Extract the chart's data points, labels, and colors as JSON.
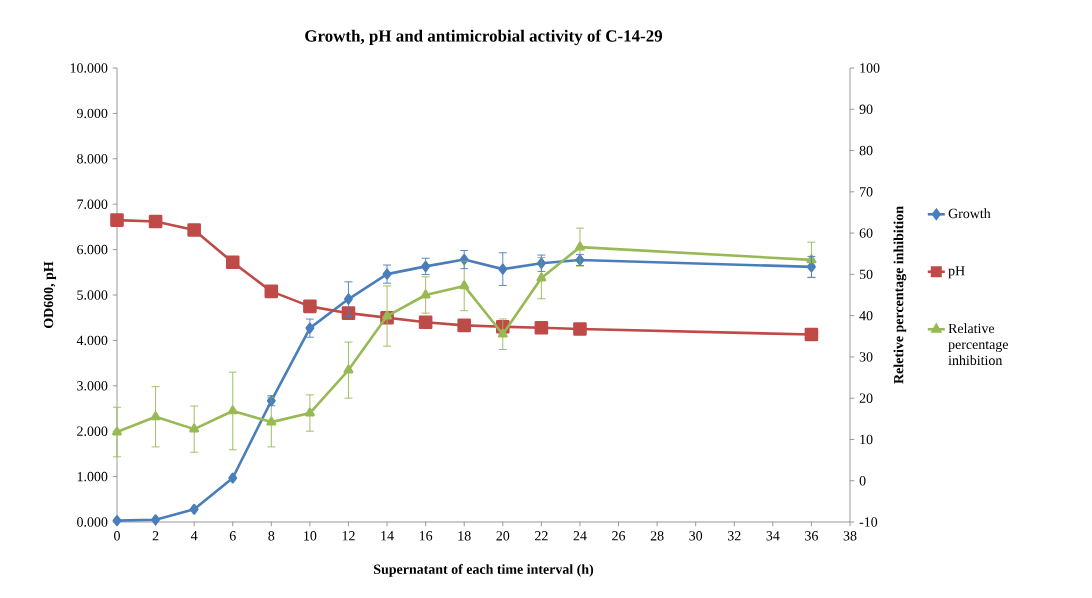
{
  "chart_data": {
    "type": "line",
    "title": "Growth, pH and antimicrobial activity of C-14-29",
    "xlabel": "Supernatant of each time interval (h)",
    "ylabel": "OD600, pH",
    "y2label": "Reletive percentage inhibition",
    "x": [
      0,
      2,
      4,
      6,
      8,
      10,
      12,
      14,
      16,
      18,
      20,
      22,
      24,
      36
    ],
    "xlim": [
      0,
      38
    ],
    "xticks": [
      0,
      2,
      4,
      6,
      8,
      10,
      12,
      14,
      16,
      18,
      20,
      22,
      24,
      26,
      28,
      30,
      32,
      34,
      36,
      38
    ],
    "ylim": [
      0,
      10
    ],
    "yticks": [
      {
        "value": 0,
        "label": "0.000"
      },
      {
        "value": 1,
        "label": "1.000"
      },
      {
        "value": 2,
        "label": "2.000"
      },
      {
        "value": 3,
        "label": "3.000"
      },
      {
        "value": 4,
        "label": "4.000"
      },
      {
        "value": 5,
        "label": "5.000"
      },
      {
        "value": 6,
        "label": "6.000"
      },
      {
        "value": 7,
        "label": "7.000"
      },
      {
        "value": 8,
        "label": "8.000"
      },
      {
        "value": 9,
        "label": "9.000"
      },
      {
        "value": 10,
        "label": "10.000"
      }
    ],
    "y2lim": [
      -10,
      100
    ],
    "y2ticks": [
      -10,
      0,
      10,
      20,
      30,
      40,
      50,
      60,
      70,
      80,
      90,
      100
    ],
    "legend": "right",
    "grid": false,
    "series": [
      {
        "name": "Growth",
        "color": "#4a7ebb",
        "marker": "diamond",
        "values": [
          0.03,
          0.05,
          0.28,
          0.97,
          2.67,
          4.27,
          4.91,
          5.46,
          5.63,
          5.78,
          5.57,
          5.7,
          5.77,
          5.62
        ],
        "errors": [
          null,
          null,
          null,
          null,
          0.11,
          0.2,
          0.38,
          0.2,
          0.18,
          0.2,
          0.36,
          0.18,
          0.12,
          0.23
        ]
      },
      {
        "name": "pH",
        "color": "#be4b48",
        "marker": "square",
        "values": [
          6.65,
          6.62,
          6.43,
          5.72,
          5.08,
          4.75,
          4.6,
          4.5,
          4.4,
          4.33,
          4.3,
          4.28,
          4.25,
          4.13
        ]
      },
      {
        "name": "Relative percentage inhibition",
        "color": "#98b954",
        "marker": "triangle",
        "axis": "y2",
        "values": [
          11.8,
          15.5,
          12.5,
          16.9,
          14.2,
          16.4,
          26.8,
          39.9,
          45,
          47.2,
          35.5,
          49.1,
          56.6,
          53.5
        ],
        "errors": [
          6,
          7.3,
          5.6,
          9.4,
          6,
          4.4,
          6.8,
          7.3,
          4.4,
          6,
          3.7,
          5,
          4.6,
          4.3
        ]
      }
    ]
  }
}
